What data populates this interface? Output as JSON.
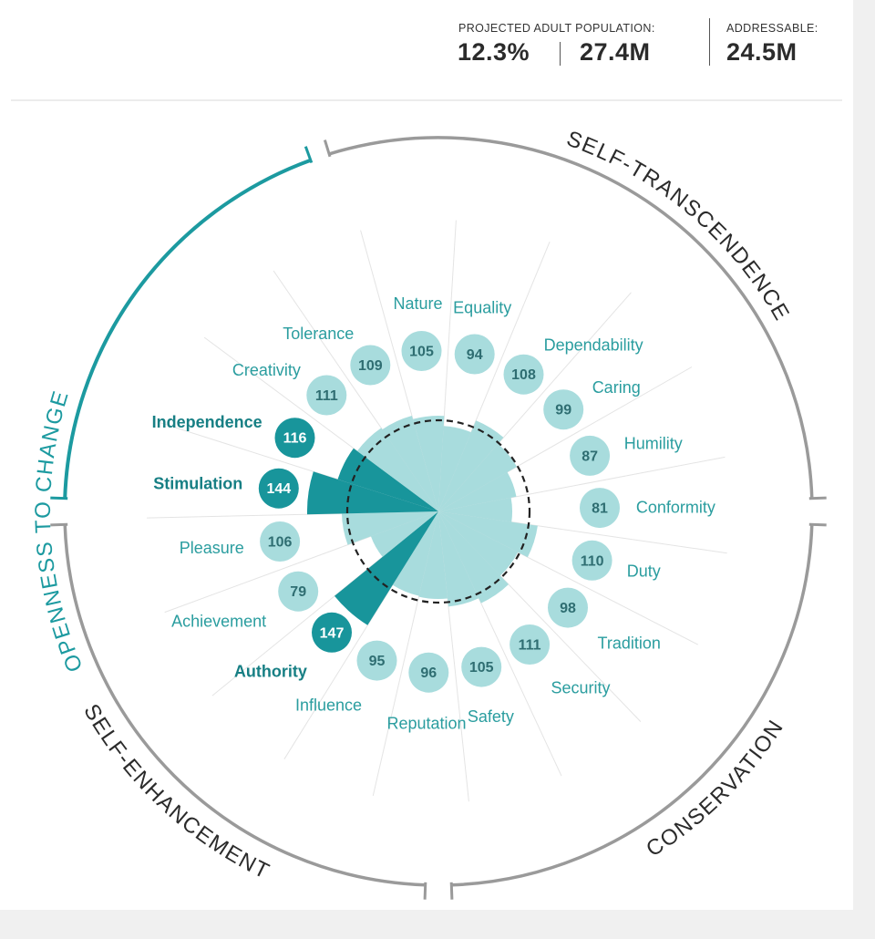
{
  "header": {
    "population_label": "PROJECTED ADULT POPULATION:",
    "population_percent": "12.3%",
    "population_count": "27.4M",
    "addressable_label": "ADDRESSABLE:",
    "addressable_count": "24.5M"
  },
  "colors": {
    "light": "#a8dcdd",
    "dark": "#18959b",
    "label": "#2a9d9f",
    "label_bold": "#177f84",
    "arc_grey": "#9a9a9a",
    "arc_teal": "#1c9aa0"
  },
  "chart_data": {
    "type": "polar-bar",
    "title": "",
    "baseline": 100,
    "baseline_style": "dashed circle",
    "groups": [
      {
        "name": "OPENNESS TO CHANGE",
        "highlighted": true
      },
      {
        "name": "SELF-TRANSCENDENCE",
        "highlighted": false
      },
      {
        "name": "CONSERVATION",
        "highlighted": false
      },
      {
        "name": "SELF-ENHANCEMENT",
        "highlighted": false
      }
    ],
    "categories": [
      "Nature",
      "Equality",
      "Dependability",
      "Caring",
      "Humility",
      "Conformity",
      "Duty",
      "Tradition",
      "Security",
      "Safety",
      "Reputation",
      "Influence",
      "Authority",
      "Achievement",
      "Pleasure",
      "Stimulation",
      "Independence",
      "Creativity",
      "Tolerance"
    ],
    "values": [
      105,
      94,
      108,
      99,
      87,
      81,
      110,
      98,
      111,
      105,
      96,
      95,
      147,
      79,
      106,
      144,
      116,
      111,
      109
    ],
    "highlighted": [
      "Authority",
      "Stimulation",
      "Independence"
    ]
  }
}
